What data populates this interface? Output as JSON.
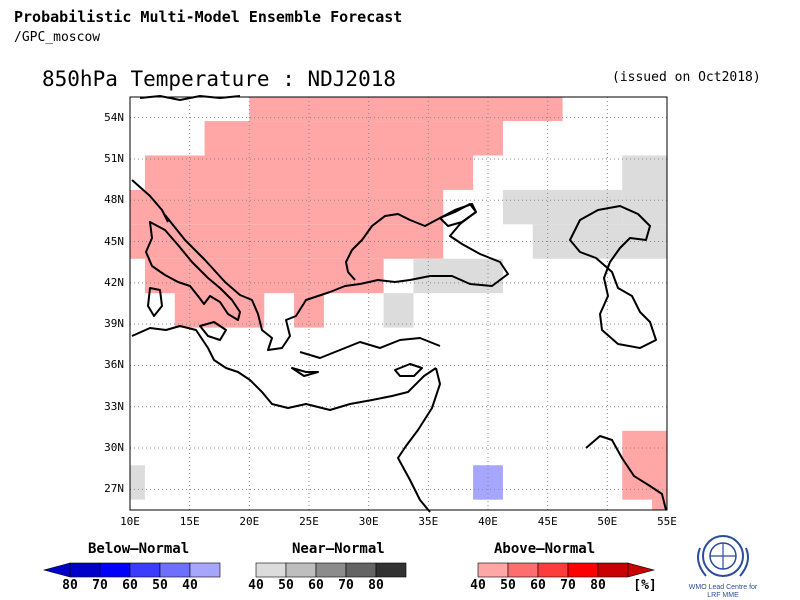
{
  "header": {
    "title": "Probabilistic Multi-Model Ensemble Forecast",
    "source": "/GPC_moscow",
    "variable_period": "850hPa Temperature : NDJ2018",
    "issued": "(issued on Oct2018)"
  },
  "axes": {
    "y_ticks": [
      "54N",
      "51N",
      "48N",
      "45N",
      "42N",
      "39N",
      "36N",
      "33N",
      "30N",
      "27N"
    ],
    "x_ticks": [
      "10E",
      "15E",
      "20E",
      "25E",
      "30E",
      "35E",
      "40E",
      "45E",
      "50E",
      "55E"
    ]
  },
  "legend": {
    "below": {
      "title": "Below–Normal",
      "ticks": [
        "80",
        "70",
        "60",
        "50",
        "40"
      ],
      "colors": [
        "#0000c8",
        "#0000ff",
        "#3c3cff",
        "#6e6eff",
        "#a6a6ff"
      ]
    },
    "near": {
      "title": "Near–Normal",
      "ticks": [
        "40",
        "50",
        "60",
        "70",
        "80"
      ],
      "colors": [
        "#dcdcdc",
        "#bebebe",
        "#8c8c8c",
        "#646464",
        "#323232"
      ]
    },
    "above": {
      "title": "Above–Normal",
      "ticks": [
        "40",
        "50",
        "60",
        "70",
        "80"
      ],
      "unit": "[%]",
      "colors": [
        "#ffa6a6",
        "#ff6e6e",
        "#ff3c3c",
        "#ff0000",
        "#c80000"
      ]
    }
  },
  "logo": {
    "text_line1": "WMO Lead Centre for",
    "text_line2": "LRF MME"
  },
  "chart_data": {
    "type": "heatmap",
    "title": "850hPa Temperature : NDJ2018",
    "xlabel": "",
    "ylabel": "",
    "xlim": [
      10,
      55
    ],
    "ylim": [
      25.5,
      55.5
    ],
    "grid": true,
    "legend_placement": "bottom",
    "categories": [
      "Below-Normal",
      "Near-Normal",
      "Above-Normal"
    ],
    "cell_size_deg": 2.5,
    "cells": [
      {
        "lon": [
          20,
          46.25
        ],
        "lat": [
          53.75,
          55.5
        ],
        "category": "Above-Normal",
        "prob_bin": "40-50"
      },
      {
        "lon": [
          16.25,
          41.25
        ],
        "lat": [
          51.25,
          53.75
        ],
        "category": "Above-Normal",
        "prob_bin": "40-50"
      },
      {
        "lon": [
          11.25,
          38.75
        ],
        "lat": [
          48.75,
          51.25
        ],
        "category": "Above-Normal",
        "prob_bin": "40-50"
      },
      {
        "lon": [
          10,
          36.25
        ],
        "lat": [
          46.25,
          48.75
        ],
        "category": "Above-Normal",
        "prob_bin": "40-50"
      },
      {
        "lon": [
          10,
          36.25
        ],
        "lat": [
          43.75,
          46.25
        ],
        "category": "Above-Normal",
        "prob_bin": "40-50"
      },
      {
        "lon": [
          11.25,
          31.25
        ],
        "lat": [
          41.25,
          43.75
        ],
        "category": "Above-Normal",
        "prob_bin": "40-50"
      },
      {
        "lon": [
          13.75,
          21.25
        ],
        "lat": [
          38.75,
          41.25
        ],
        "category": "Above-Normal",
        "prob_bin": "40-50"
      },
      {
        "lon": [
          23.75,
          26.25
        ],
        "lat": [
          38.75,
          41.25
        ],
        "category": "Above-Normal",
        "prob_bin": "40-50"
      },
      {
        "lon": [
          51.25,
          55
        ],
        "lat": [
          26.25,
          31.25
        ],
        "category": "Above-Normal",
        "prob_bin": "40-50"
      },
      {
        "lon": [
          53.75,
          55
        ],
        "lat": [
          25.5,
          26.25
        ],
        "category": "Above-Normal",
        "prob_bin": "40-50"
      },
      {
        "lon": [
          51.25,
          55
        ],
        "lat": [
          46.25,
          51.25
        ],
        "category": "Near-Normal",
        "prob_bin": "40-50"
      },
      {
        "lon": [
          41.25,
          51.25
        ],
        "lat": [
          46.25,
          48.75
        ],
        "category": "Near-Normal",
        "prob_bin": "40-50"
      },
      {
        "lon": [
          43.75,
          55
        ],
        "lat": [
          43.75,
          46.25
        ],
        "category": "Near-Normal",
        "prob_bin": "40-50"
      },
      {
        "lon": [
          33.75,
          41.25
        ],
        "lat": [
          41.25,
          43.75
        ],
        "category": "Near-Normal",
        "prob_bin": "40-50"
      },
      {
        "lon": [
          31.25,
          33.75
        ],
        "lat": [
          38.75,
          41.25
        ],
        "category": "Near-Normal",
        "prob_bin": "40-50"
      },
      {
        "lon": [
          10,
          11.25
        ],
        "lat": [
          26.25,
          28.75
        ],
        "category": "Near-Normal",
        "prob_bin": "40-50"
      },
      {
        "lon": [
          38.75,
          41.25
        ],
        "lat": [
          26.25,
          28.75
        ],
        "category": "Below-Normal",
        "prob_bin": "40-50"
      }
    ]
  }
}
